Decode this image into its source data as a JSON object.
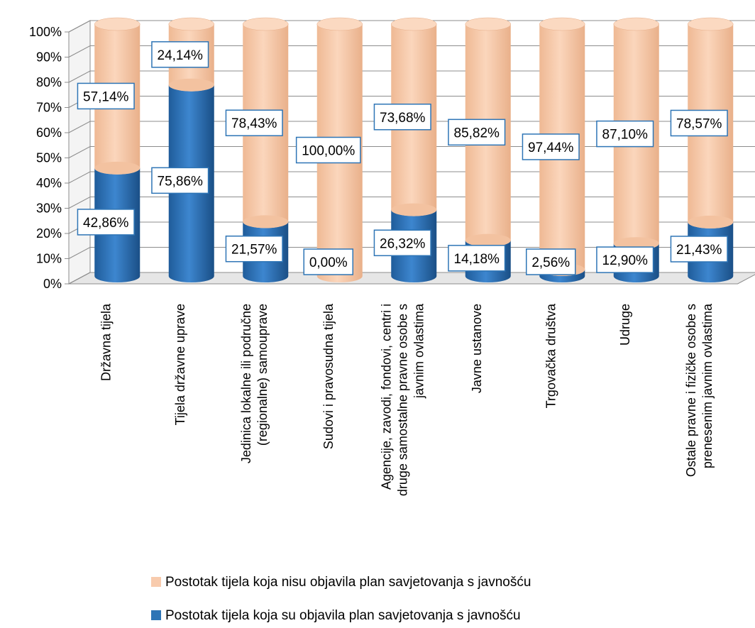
{
  "chart_data": {
    "type": "bar",
    "stacked": true,
    "style": "3d-cylinder",
    "y_unit": "percent",
    "ylim": [
      0,
      100
    ],
    "yticks": [
      "0%",
      "10%",
      "20%",
      "30%",
      "40%",
      "50%",
      "60%",
      "70%",
      "80%",
      "90%",
      "100%"
    ],
    "grid": true,
    "legend_position": "bottom",
    "categories": [
      [
        "Državna tijela"
      ],
      [
        "Tijela državne uprave"
      ],
      [
        "Jedinica lokalne ili područne",
        "(regionalne) samouprave"
      ],
      [
        "Sudovi i pravosudna tijela"
      ],
      [
        "Agencije, zavodi, fondovi, centri i",
        "druge samostalne pravne osobe s",
        "javnim ovlastima"
      ],
      [
        "Javne ustanove"
      ],
      [
        "Trgovačka društva"
      ],
      [
        "Udruge"
      ],
      [
        "Ostale pravne i fizičke osobe s",
        "prenesenim javnim ovlastima"
      ]
    ],
    "series": [
      {
        "name": "Postotak tijela koja su objavila plan savjetovanja s javnošću",
        "color": "#2E75B6",
        "values": [
          42.86,
          75.86,
          21.57,
          0.0,
          26.32,
          14.18,
          2.56,
          12.9,
          21.43
        ],
        "labels": [
          "42,86%",
          "75,86%",
          "21,57%",
          "0,00%",
          "26,32%",
          "14,18%",
          "2,56%",
          "12,90%",
          "21,43%"
        ]
      },
      {
        "name": "Postotak tijela koja nisu objavila plan savjetovanja s javnošću",
        "color": "#F8CBAD",
        "values": [
          57.14,
          24.14,
          78.43,
          100.0,
          73.68,
          85.82,
          97.44,
          87.1,
          78.57
        ],
        "labels": [
          "57,14%",
          "24,14%",
          "78,43%",
          "100,00%",
          "73,68%",
          "85,82%",
          "97,44%",
          "87,10%",
          "78,57%"
        ]
      }
    ],
    "legend_order": [
      1,
      0
    ]
  }
}
